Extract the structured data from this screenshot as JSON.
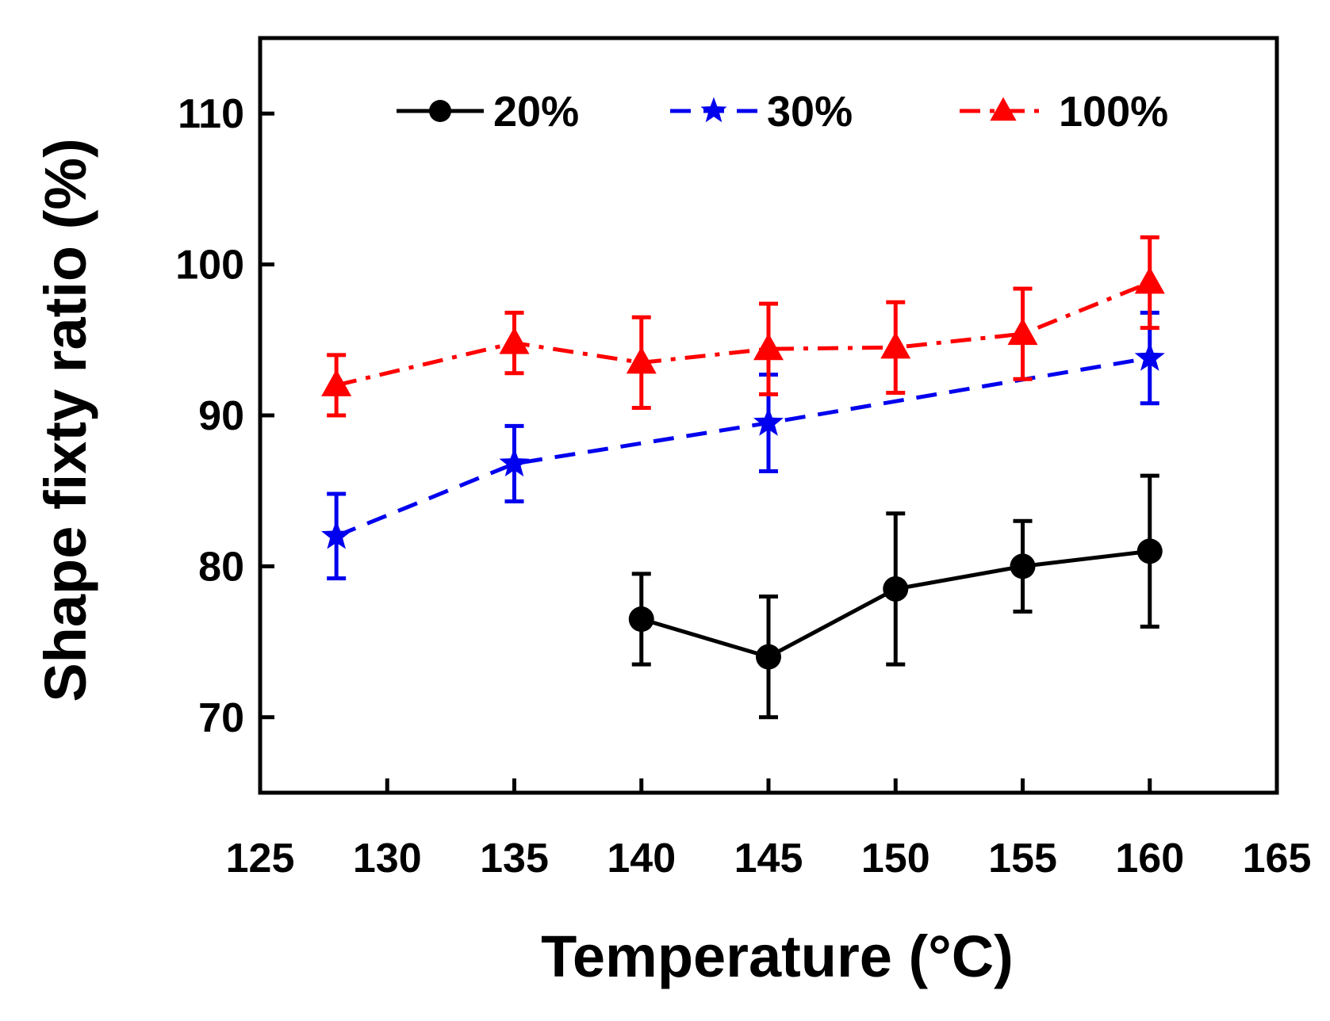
{
  "chart_data": {
    "type": "line",
    "title": "",
    "xlabel": "Temperature",
    "xlabel_unit": "(°C)",
    "ylabel": "Shape fixty ratio (%)",
    "xlim": [
      125,
      165
    ],
    "ylim": [
      65,
      115
    ],
    "xticks": [
      125,
      130,
      135,
      140,
      145,
      150,
      155,
      160,
      165
    ],
    "yticks": [
      70,
      80,
      90,
      100,
      110
    ],
    "grid": false,
    "legend_position": "top",
    "series": [
      {
        "name": "20%",
        "color": "#000000",
        "line_style": "solid",
        "marker": "circle",
        "x": [
          140,
          145,
          150,
          155,
          160
        ],
        "y": [
          76.5,
          74.0,
          78.5,
          80.0,
          81.0
        ],
        "err": [
          3.0,
          4.0,
          5.0,
          3.0,
          5.0
        ]
      },
      {
        "name": "30%",
        "color": "#0000ee",
        "line_style": "dashed",
        "marker": "star",
        "x": [
          128,
          135,
          145,
          160
        ],
        "y": [
          82.0,
          86.8,
          89.5,
          93.8
        ],
        "err": [
          2.8,
          2.5,
          3.2,
          3.0
        ]
      },
      {
        "name": "100%",
        "color": "#ff0000",
        "line_style": "dashdot",
        "marker": "triangle",
        "x": [
          128,
          135,
          140,
          145,
          150,
          155,
          160
        ],
        "y": [
          92.0,
          94.8,
          93.5,
          94.4,
          94.5,
          95.4,
          98.8
        ],
        "err": [
          2.0,
          2.0,
          3.0,
          3.0,
          3.0,
          3.0,
          3.0
        ]
      }
    ]
  }
}
